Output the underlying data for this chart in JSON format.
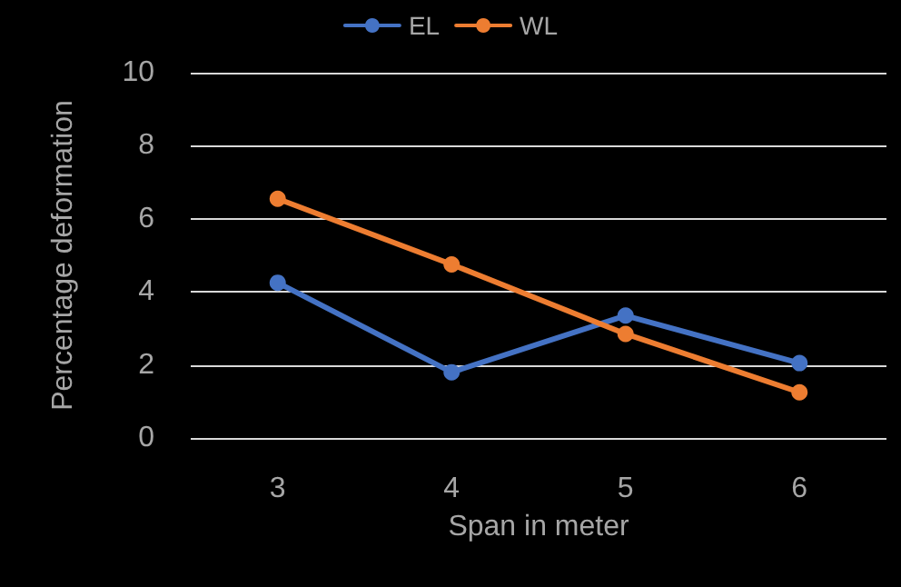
{
  "chart_data": {
    "type": "line",
    "xlabel": "Span in meter",
    "ylabel": "Percentage deformation",
    "categories": [
      "3",
      "4",
      "5",
      "6"
    ],
    "series": [
      {
        "name": "EL",
        "color": "#4472c4",
        "values": [
          4.25,
          1.8,
          3.35,
          2.05
        ]
      },
      {
        "name": "WL",
        "color": "#ed7d31",
        "values": [
          6.55,
          4.75,
          2.85,
          1.25
        ]
      }
    ],
    "ylim": [
      0,
      10
    ],
    "yticks": [
      0,
      2,
      4,
      6,
      8,
      10
    ],
    "grid": "y",
    "legend": "top",
    "marker": "circle",
    "line_style": "solid"
  }
}
